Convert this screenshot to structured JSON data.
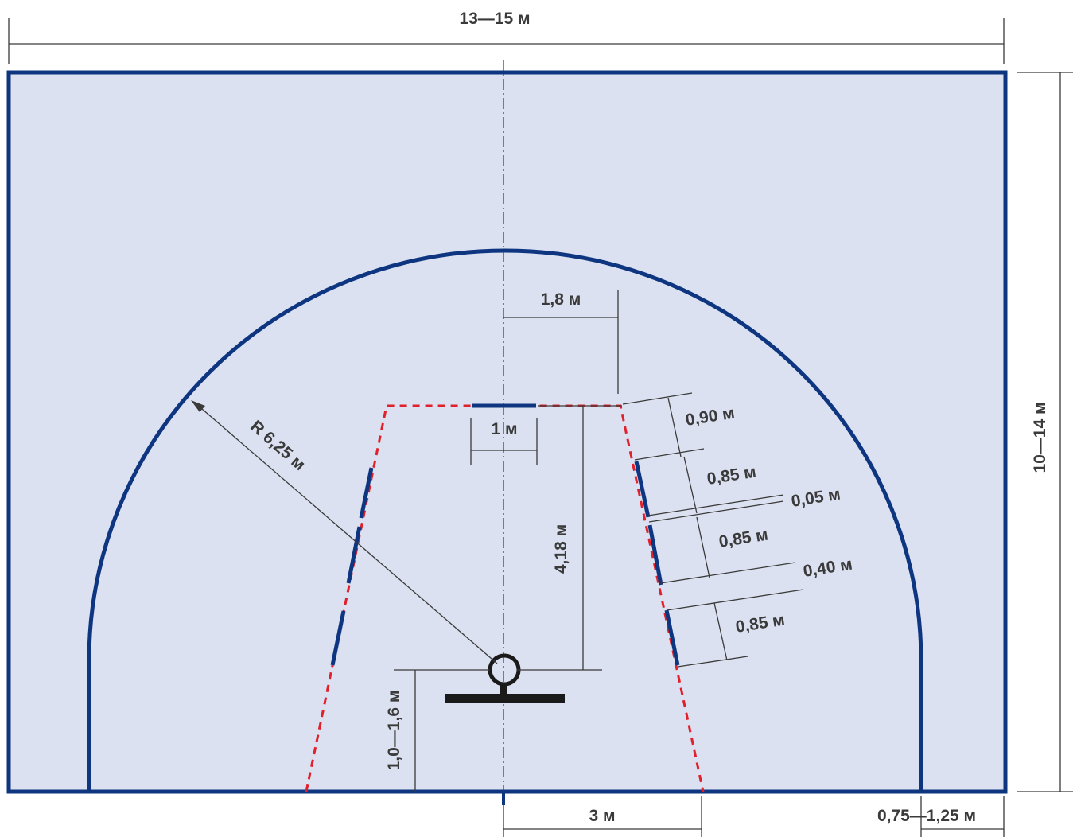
{
  "colors": {
    "court_fill": "#dce1f1",
    "court_line": "#0d3580",
    "restricted_line": "#e0212b",
    "dimension_line": "#3a3a3a",
    "label_text": "#3a3a3a",
    "backboard": "#1a1a1a"
  },
  "labels": {
    "court_width": "13—15 м",
    "court_length": "10—14 м",
    "radius": "R 6,25 м",
    "ft_line_half": "1,8 м",
    "ft_line_mark": "1 м",
    "ft_distance": "4,18 м",
    "backboard_offset": "1,0—1,6 м",
    "lane_half_base": "3 м",
    "arc_side_offset": "0,75—1,25 м",
    "lane_seg_1": "0,90 м",
    "lane_seg_2": "0,85 м",
    "lane_seg_3": "0,05 м",
    "lane_seg_4": "0,85 м",
    "lane_seg_5": "0,40 м",
    "lane_seg_6": "0,85 м"
  }
}
